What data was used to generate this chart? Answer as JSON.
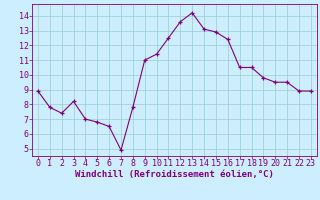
{
  "x": [
    0,
    1,
    2,
    3,
    4,
    5,
    6,
    7,
    8,
    9,
    10,
    11,
    12,
    13,
    14,
    15,
    16,
    17,
    18,
    19,
    20,
    21,
    22,
    23
  ],
  "y": [
    8.9,
    7.8,
    7.4,
    8.2,
    7.0,
    6.8,
    6.5,
    4.9,
    7.8,
    11.0,
    11.4,
    12.5,
    13.6,
    14.2,
    13.1,
    12.9,
    12.4,
    10.5,
    10.5,
    9.8,
    9.5,
    9.5,
    8.9,
    8.9
  ],
  "line_color": "#800080",
  "marker": "+",
  "bg_color": "#cceeff",
  "grid_color": "#99cccc",
  "xlabel": "Windchill (Refroidissement éolien,°C)",
  "xlabel_color": "#800080",
  "tick_color": "#800080",
  "ylim": [
    4.5,
    14.8
  ],
  "yticks": [
    5,
    6,
    7,
    8,
    9,
    10,
    11,
    12,
    13,
    14
  ],
  "xlim": [
    -0.5,
    23.5
  ],
  "xticks": [
    0,
    1,
    2,
    3,
    4,
    5,
    6,
    7,
    8,
    9,
    10,
    11,
    12,
    13,
    14,
    15,
    16,
    17,
    18,
    19,
    20,
    21,
    22,
    23
  ],
  "spine_color": "#800080",
  "font_size_label": 6.5,
  "font_size_tick": 6.0
}
